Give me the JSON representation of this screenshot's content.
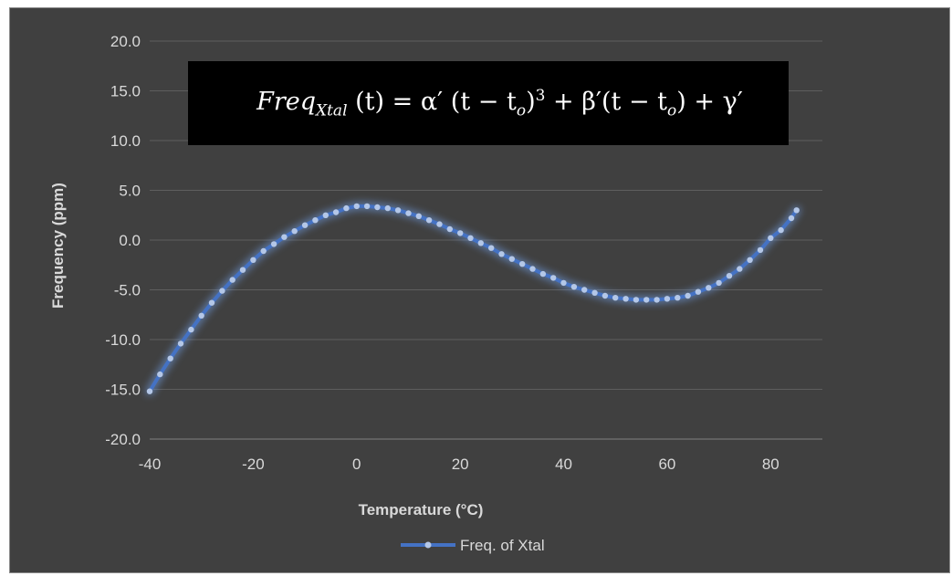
{
  "colors": {
    "background": "#404040",
    "series": "#4472c4",
    "glow": "#6f9be0",
    "marker": "#b4c7e7",
    "text": "#d9d9d9",
    "grid": "#5e5e5e"
  },
  "formula": {
    "lhs_name": "Freq",
    "lhs_sub": "Xtal",
    "lhs_arg": "(t) = ",
    "alpha": "α′",
    "open1": " (t − t",
    "sub_o": "o",
    "close1": ")",
    "cube": "3",
    "plus1": " + ",
    "beta": "β′",
    "open2": "(t − t",
    "close2": ")",
    "plus2": " + ",
    "gamma": "γ′"
  },
  "chart_data": {
    "type": "line",
    "title": "",
    "xlabel": "Temperature (°C)",
    "ylabel": "Frequency (ppm)",
    "xlim": [
      -40,
      90
    ],
    "ylim": [
      -20,
      20
    ],
    "x_ticks": [
      "-40",
      "-20",
      "0",
      "20",
      "40",
      "60",
      "80"
    ],
    "x_tick_values": [
      -40,
      -20,
      0,
      20,
      40,
      60,
      80
    ],
    "y_ticks": [
      "20.0",
      "15.0",
      "10.0",
      "5.0",
      "0.0",
      "-5.0",
      "-10.0",
      "-15.0",
      "-20.0"
    ],
    "y_tick_values": [
      20,
      15,
      10,
      5,
      0,
      -5,
      -10,
      -15,
      -20
    ],
    "grid": "horizontal",
    "legend": "bottom",
    "series": [
      {
        "name": "Freq. of Xtal",
        "x": [
          -40,
          -38,
          -36,
          -34,
          -32,
          -30,
          -28,
          -26,
          -24,
          -22,
          -20,
          -18,
          -16,
          -14,
          -12,
          -10,
          -8,
          -6,
          -4,
          -2,
          0,
          2,
          4,
          6,
          8,
          10,
          12,
          14,
          16,
          18,
          20,
          22,
          24,
          26,
          28,
          30,
          32,
          34,
          36,
          38,
          40,
          42,
          44,
          46,
          48,
          50,
          52,
          54,
          56,
          58,
          60,
          62,
          64,
          66,
          68,
          70,
          72,
          74,
          76,
          78,
          80,
          82,
          84,
          85
        ],
        "y": [
          -15.2,
          -13.5,
          -11.9,
          -10.4,
          -9.0,
          -7.6,
          -6.3,
          -5.1,
          -4.0,
          -3.0,
          -2.0,
          -1.1,
          -0.4,
          0.3,
          0.9,
          1.5,
          2.0,
          2.5,
          2.8,
          3.2,
          3.4,
          3.4,
          3.3,
          3.2,
          3.0,
          2.7,
          2.4,
          2.0,
          1.6,
          1.1,
          0.7,
          0.2,
          -0.3,
          -0.8,
          -1.4,
          -1.9,
          -2.4,
          -2.9,
          -3.4,
          -3.8,
          -4.3,
          -4.7,
          -5.0,
          -5.3,
          -5.6,
          -5.8,
          -5.9,
          -6.0,
          -6.0,
          -6.0,
          -5.9,
          -5.8,
          -5.6,
          -5.2,
          -4.8,
          -4.3,
          -3.6,
          -2.9,
          -2.0,
          -1.0,
          0.2,
          1.0,
          2.2,
          3.0
        ]
      }
    ]
  }
}
